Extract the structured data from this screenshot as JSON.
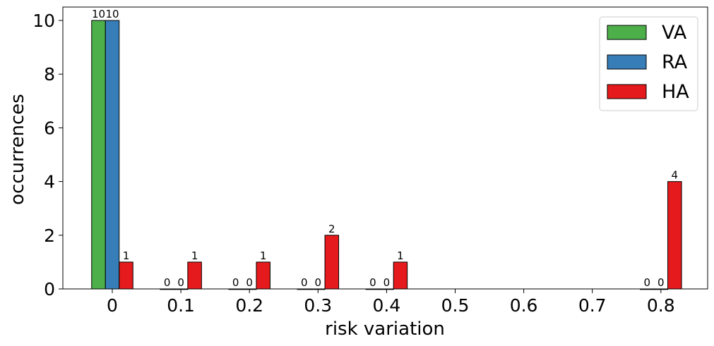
{
  "chart_data": {
    "type": "bar",
    "title": "",
    "xlabel": "risk variation",
    "ylabel": "occurrences",
    "categories": [
      "0",
      "0.1",
      "0.2",
      "0.3",
      "0.4",
      "0.5",
      "0.6",
      "0.7",
      "0.8"
    ],
    "series": [
      {
        "name": "VA",
        "color": "#4daf4a",
        "values": [
          10,
          0,
          0,
          0,
          0,
          null,
          null,
          null,
          0
        ]
      },
      {
        "name": "RA",
        "color": "#377eb8",
        "values": [
          10,
          0,
          0,
          0,
          0,
          null,
          null,
          null,
          0
        ]
      },
      {
        "name": "HA",
        "color": "#e41a1c",
        "values": [
          1,
          1,
          1,
          2,
          1,
          null,
          null,
          null,
          4
        ]
      }
    ],
    "ylim": [
      0,
      10.5
    ],
    "yticks": [
      0,
      2,
      4,
      6,
      8,
      10
    ],
    "grid": false,
    "legend_position": "top-right"
  }
}
